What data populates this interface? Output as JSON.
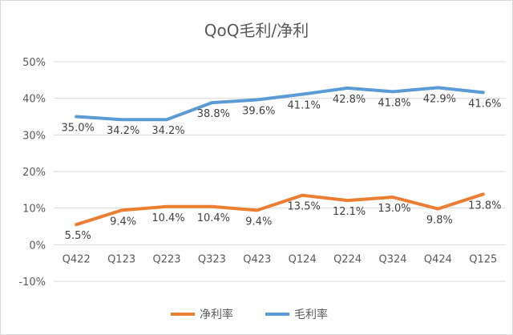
{
  "chart_data": {
    "type": "line",
    "title": "QoQ毛利/净利",
    "categories": [
      "Q422",
      "Q123",
      "Q223",
      "Q323",
      "Q423",
      "Q124",
      "Q224",
      "Q324",
      "Q424",
      "Q125"
    ],
    "ylim": [
      -10,
      50
    ],
    "yticks": [
      "-10%",
      "0%",
      "10%",
      "20%",
      "30%",
      "40%",
      "50%"
    ],
    "grid": true,
    "legend": "bottom",
    "series": [
      {
        "name": "净利率",
        "color": "#ed7d31",
        "values": [
          5.5,
          9.4,
          10.4,
          10.4,
          9.4,
          13.5,
          12.1,
          13.0,
          9.8,
          13.8
        ],
        "labels": [
          "5.5%",
          "9.4%",
          "10.4%",
          "10.4%",
          "9.4%",
          "13.5%",
          "12.1%",
          "13.0%",
          "9.8%",
          "13.8%"
        ]
      },
      {
        "name": "毛利率",
        "color": "#5b9bd5",
        "values": [
          35.0,
          34.2,
          34.2,
          38.8,
          39.6,
          41.1,
          42.8,
          41.8,
          42.9,
          41.6
        ],
        "labels": [
          "35.0%",
          "34.2%",
          "34.2%",
          "38.8%",
          "39.6%",
          "41.1%",
          "42.8%",
          "41.8%",
          "42.9%",
          "41.6%"
        ]
      }
    ]
  }
}
